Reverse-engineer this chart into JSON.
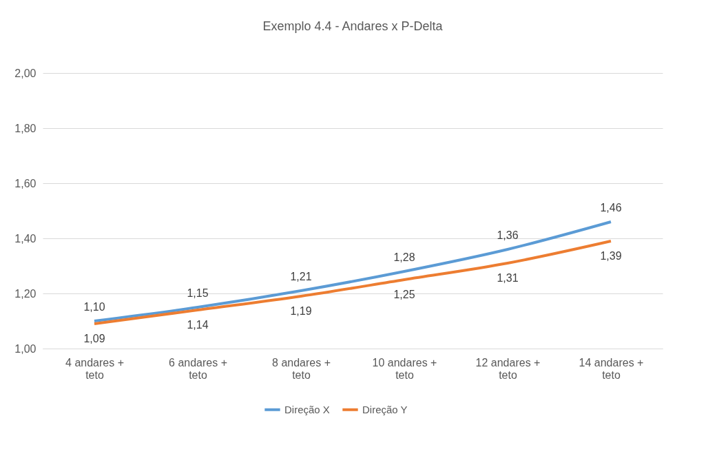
{
  "chart_data": {
    "type": "line",
    "title": "Exemplo 4.4 - Andares x P-Delta",
    "categories": [
      "4 andares + teto",
      "6 andares + teto",
      "8 andares + teto",
      "10 andares + teto",
      "12 andares + teto",
      "14 andares + teto"
    ],
    "series": [
      {
        "name": "Direção X",
        "color": "#5b9bd5",
        "values": [
          1.1,
          1.15,
          1.21,
          1.28,
          1.36,
          1.46
        ],
        "value_labels": [
          "1,10",
          "1,15",
          "1,21",
          "1,28",
          "1,36",
          "1,46"
        ]
      },
      {
        "name": "Direção Y",
        "color": "#ed7d31",
        "values": [
          1.09,
          1.14,
          1.19,
          1.25,
          1.31,
          1.39
        ],
        "value_labels": [
          "1,09",
          "1,14",
          "1,19",
          "1,25",
          "1,31",
          "1,39"
        ]
      }
    ],
    "ylim": [
      1.0,
      2.0
    ],
    "yticks": [
      {
        "value": 1.0,
        "label": "1,00"
      },
      {
        "value": 1.2,
        "label": "1,20"
      },
      {
        "value": 1.4,
        "label": "1,40"
      },
      {
        "value": 1.6,
        "label": "1,60"
      },
      {
        "value": 1.8,
        "label": "1,80"
      },
      {
        "value": 2.0,
        "label": "2,00"
      }
    ],
    "grid": "y",
    "legend": "bottom",
    "line_style": "solid",
    "marker": "none"
  }
}
